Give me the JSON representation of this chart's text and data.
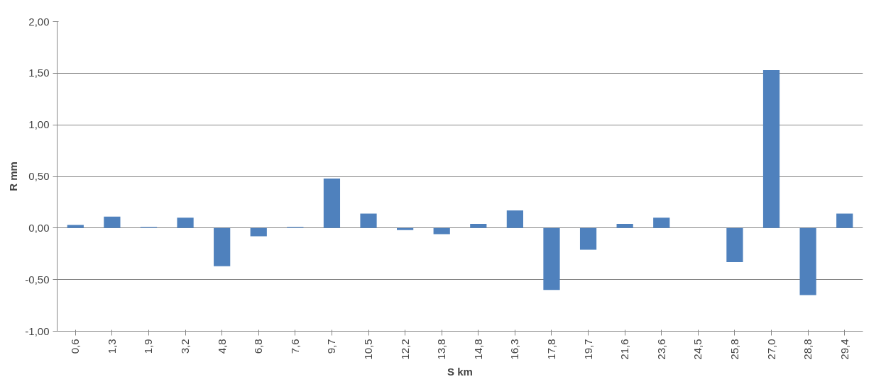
{
  "chart_data": {
    "type": "bar",
    "xlabel": "S km",
    "ylabel": "R mm",
    "categories": [
      "0,6",
      "1,3",
      "1,9",
      "3,2",
      "4,8",
      "6,8",
      "7,6",
      "9,7",
      "10,5",
      "12,2",
      "13,8",
      "14,8",
      "16,3",
      "17,8",
      "19,7",
      "21,6",
      "23,6",
      "24,5",
      "25,8",
      "27,0",
      "28,8",
      "29,4"
    ],
    "values": [
      0.03,
      0.11,
      0.01,
      0.1,
      -0.37,
      -0.08,
      0.01,
      0.48,
      0.14,
      -0.02,
      -0.06,
      0.04,
      0.17,
      -0.6,
      -0.21,
      0.04,
      0.1,
      0,
      -0.33,
      1.53,
      -0.65,
      0.14
    ],
    "color": "#4f81bd",
    "ylim": [
      -1,
      2
    ],
    "yticks": [
      {
        "value": -1,
        "label": "-1,00"
      },
      {
        "value": -0.5,
        "label": "-0,50"
      },
      {
        "value": 0,
        "label": "0,00"
      },
      {
        "value": 0.5,
        "label": "0,50"
      },
      {
        "value": 1,
        "label": "1,00"
      },
      {
        "value": 1.5,
        "label": "1,50"
      },
      {
        "value": 2,
        "label": "2,00"
      }
    ],
    "grid": "y"
  }
}
